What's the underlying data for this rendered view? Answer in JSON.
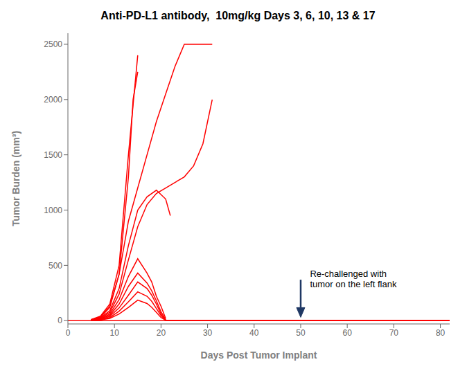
{
  "chart_data": {
    "type": "line",
    "title": "Anti-PD-L1 antibody,  10mg/kg Days 3, 6, 10, 13 & 17",
    "x_label": "Days Post Tumor Implant",
    "y_label": "Tumor Burden (mm³)",
    "color": "#FF0000",
    "grid": false,
    "xlim": [
      0,
      82
    ],
    "ylim": [
      -30,
      2600
    ],
    "xticks": [
      0,
      10,
      20,
      30,
      40,
      50,
      60,
      70,
      80
    ],
    "yticks": [
      0,
      500,
      1000,
      1500,
      2000,
      2500
    ],
    "series": [
      {
        "x": [
          5,
          7,
          9,
          11,
          13,
          15
        ],
        "values": [
          10,
          40,
          150,
          500,
          1500,
          2400
        ]
      },
      {
        "x": [
          5,
          7,
          9,
          11,
          13,
          14,
          15
        ],
        "values": [
          8,
          30,
          120,
          420,
          1300,
          2000,
          2250
        ]
      },
      {
        "x": [
          5,
          7,
          9,
          11,
          13,
          15,
          17,
          19,
          21,
          23,
          25,
          27,
          29,
          31
        ],
        "values": [
          10,
          35,
          130,
          420,
          900,
          1200,
          1500,
          1800,
          2050,
          2300,
          2500,
          2500,
          2500,
          2500
        ]
      },
      {
        "x": [
          5,
          7,
          9,
          11,
          13,
          15,
          17,
          19,
          21,
          22
        ],
        "values": [
          8,
          25,
          90,
          290,
          680,
          1000,
          1120,
          1180,
          1100,
          950
        ]
      },
      {
        "x": [
          5,
          7,
          9,
          11,
          13,
          15,
          17,
          19,
          21,
          23,
          25,
          27,
          29,
          31
        ],
        "values": [
          6,
          20,
          75,
          240,
          550,
          850,
          1050,
          1150,
          1200,
          1250,
          1300,
          1400,
          1600,
          2000
        ]
      },
      {
        "x": [
          5,
          7,
          9,
          11,
          13,
          15,
          17,
          18,
          19,
          20,
          21
        ],
        "values": [
          5,
          16,
          60,
          190,
          400,
          560,
          430,
          350,
          220,
          130,
          20
        ]
      },
      {
        "x": [
          5,
          7,
          9,
          11,
          13,
          15,
          17,
          18,
          19,
          20,
          21
        ],
        "values": [
          4,
          13,
          48,
          150,
          310,
          430,
          340,
          270,
          180,
          80,
          10
        ]
      },
      {
        "x": [
          5,
          7,
          9,
          11,
          13,
          15,
          17,
          18,
          19,
          20,
          21
        ],
        "values": [
          3,
          10,
          38,
          115,
          230,
          350,
          290,
          230,
          150,
          60,
          8
        ]
      },
      {
        "x": [
          5,
          7,
          9,
          11,
          13,
          15,
          17,
          18,
          19,
          20,
          21
        ],
        "values": [
          2,
          8,
          28,
          85,
          170,
          260,
          220,
          175,
          110,
          45,
          5
        ]
      },
      {
        "x": [
          5,
          7,
          9,
          11,
          13,
          15,
          17,
          18,
          19,
          20,
          21
        ],
        "values": [
          2,
          6,
          20,
          60,
          120,
          185,
          155,
          120,
          75,
          28,
          3
        ]
      },
      {
        "x": [
          21,
          82
        ],
        "values": [
          0,
          0
        ]
      },
      {
        "x": [
          21,
          82
        ],
        "values": [
          0,
          0
        ]
      },
      {
        "x": [
          21,
          82
        ],
        "values": [
          0,
          0
        ]
      },
      {
        "x": [
          21,
          82
        ],
        "values": [
          0,
          0
        ]
      },
      {
        "x": [
          21,
          82
        ],
        "values": [
          0,
          0
        ]
      }
    ],
    "reference_lines": [
      {
        "y": 0
      }
    ],
    "annotations": [
      {
        "text": "Re-challenged with\ntumor on the left flank",
        "x": 52,
        "y": 380,
        "arrow": {
          "x": 50,
          "y_from": 370,
          "y_to": 30,
          "color": "#1F3864"
        }
      }
    ]
  }
}
